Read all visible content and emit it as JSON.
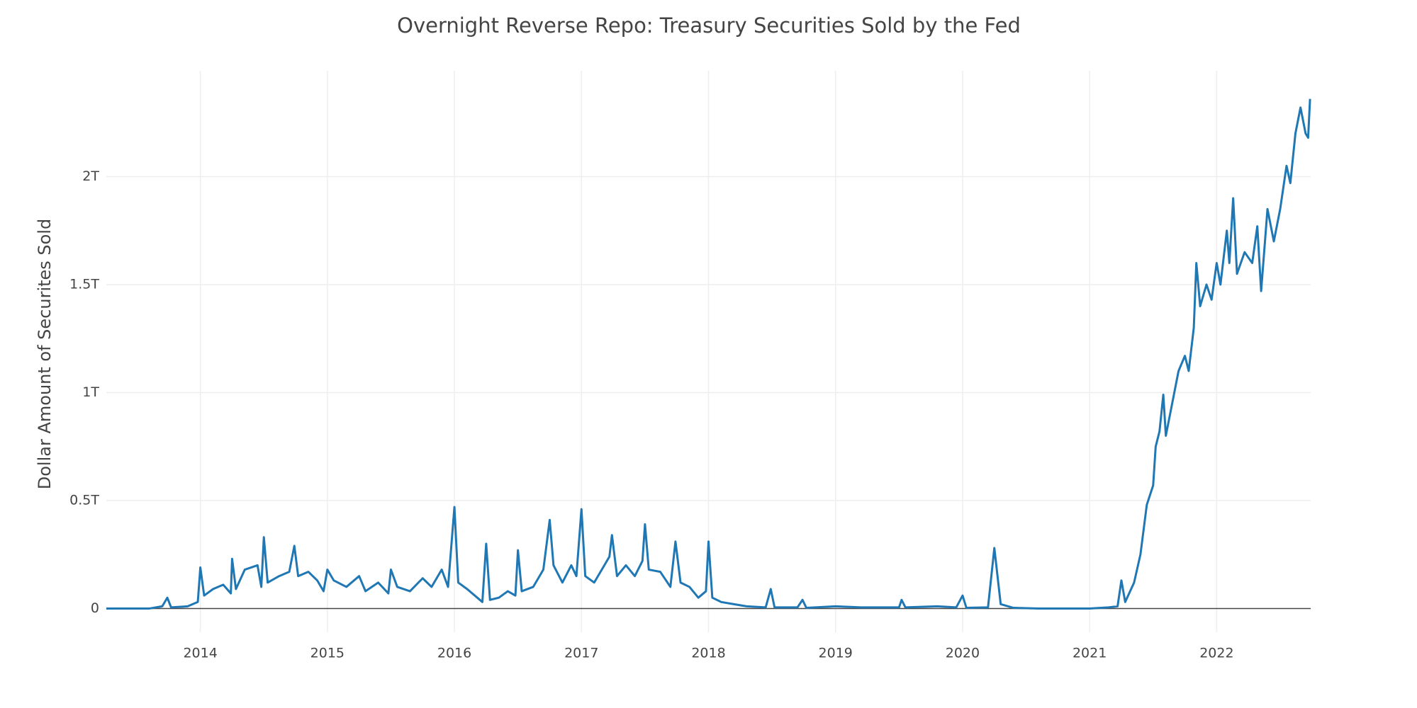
{
  "chart_data": {
    "type": "line",
    "title": "Overnight Reverse Repo: Treasury Securities Sold by the Fed",
    "y_label": "Dollar Amount of Securites Sold",
    "xlim": [
      2013.26,
      2022.74
    ],
    "xticks": [
      2014,
      2015,
      2016,
      2017,
      2018,
      2019,
      2020,
      2021,
      2022
    ],
    "ylim": [
      -0.11,
      2.49
    ],
    "yticks": [
      0,
      {
        "value": 0.5,
        "label": "0.5T"
      },
      {
        "value": 1,
        "label": "1T"
      },
      {
        "value": 1.5,
        "label": "1.5T"
      },
      {
        "value": 2,
        "label": "2T"
      }
    ],
    "grid": true,
    "x": [
      2013.26,
      2013.6,
      2013.7,
      2013.74,
      2013.77,
      2013.9,
      2013.98,
      2014.0,
      2014.03,
      2014.1,
      2014.18,
      2014.24,
      2014.25,
      2014.28,
      2014.35,
      2014.45,
      2014.48,
      2014.5,
      2014.53,
      2014.62,
      2014.7,
      2014.74,
      2014.77,
      2014.85,
      2014.92,
      2014.97,
      2015.0,
      2015.05,
      2015.15,
      2015.25,
      2015.3,
      2015.4,
      2015.48,
      2015.5,
      2015.55,
      2015.65,
      2015.75,
      2015.82,
      2015.9,
      2015.95,
      2016.0,
      2016.03,
      2016.1,
      2016.18,
      2016.22,
      2016.25,
      2016.28,
      2016.35,
      2016.42,
      2016.48,
      2016.5,
      2016.53,
      2016.62,
      2016.7,
      2016.75,
      2016.78,
      2016.85,
      2016.92,
      2016.96,
      2017.0,
      2017.03,
      2017.1,
      2017.18,
      2017.22,
      2017.24,
      2017.28,
      2017.35,
      2017.42,
      2017.48,
      2017.5,
      2017.53,
      2017.62,
      2017.7,
      2017.74,
      2017.78,
      2017.85,
      2017.92,
      2017.98,
      2018.0,
      2018.03,
      2018.1,
      2018.2,
      2018.3,
      2018.45,
      2018.49,
      2018.52,
      2018.7,
      2018.74,
      2018.77,
      2019.0,
      2019.2,
      2019.5,
      2019.52,
      2019.55,
      2019.8,
      2019.95,
      2020.0,
      2020.03,
      2020.2,
      2020.25,
      2020.3,
      2020.4,
      2020.6,
      2021.0,
      2021.15,
      2021.22,
      2021.25,
      2021.28,
      2021.35,
      2021.4,
      2021.45,
      2021.5,
      2021.52,
      2021.55,
      2021.58,
      2021.6,
      2021.65,
      2021.7,
      2021.75,
      2021.78,
      2021.82,
      2021.84,
      2021.87,
      2021.92,
      2021.96,
      2022.0,
      2022.03,
      2022.08,
      2022.1,
      2022.13,
      2022.16,
      2022.22,
      2022.28,
      2022.32,
      2022.35,
      2022.4,
      2022.45,
      2022.5,
      2022.55,
      2022.58,
      2022.62,
      2022.66,
      2022.7,
      2022.72,
      2022.735
    ],
    "series": [
      {
        "color": "#1f77b4",
        "values": [
          0,
          0,
          0.01,
          0.05,
          0.005,
          0.01,
          0.03,
          0.19,
          0.06,
          0.09,
          0.11,
          0.07,
          0.23,
          0.09,
          0.18,
          0.2,
          0.1,
          0.33,
          0.12,
          0.15,
          0.17,
          0.29,
          0.15,
          0.17,
          0.13,
          0.08,
          0.18,
          0.13,
          0.1,
          0.15,
          0.08,
          0.12,
          0.07,
          0.18,
          0.1,
          0.08,
          0.14,
          0.1,
          0.18,
          0.1,
          0.47,
          0.12,
          0.09,
          0.05,
          0.03,
          0.3,
          0.04,
          0.05,
          0.08,
          0.06,
          0.27,
          0.08,
          0.1,
          0.18,
          0.41,
          0.2,
          0.12,
          0.2,
          0.15,
          0.46,
          0.15,
          0.12,
          0.2,
          0.24,
          0.34,
          0.15,
          0.2,
          0.15,
          0.22,
          0.39,
          0.18,
          0.17,
          0.1,
          0.31,
          0.12,
          0.1,
          0.05,
          0.08,
          0.31,
          0.05,
          0.03,
          0.02,
          0.01,
          0.005,
          0.09,
          0.005,
          0.005,
          0.04,
          0.003,
          0.01,
          0.005,
          0.005,
          0.04,
          0.005,
          0.01,
          0.005,
          0.06,
          0.003,
          0.005,
          0.28,
          0.02,
          0.003,
          0,
          0,
          0.005,
          0.01,
          0.13,
          0.03,
          0.12,
          0.25,
          0.48,
          0.57,
          0.75,
          0.82,
          0.99,
          0.8,
          0.95,
          1.1,
          1.17,
          1.1,
          1.3,
          1.6,
          1.4,
          1.5,
          1.43,
          1.6,
          1.5,
          1.75,
          1.6,
          1.9,
          1.55,
          1.65,
          1.6,
          1.77,
          1.47,
          1.85,
          1.7,
          1.85,
          2.05,
          1.97,
          2.2,
          2.32,
          2.2,
          2.18,
          2.36
        ]
      }
    ]
  }
}
